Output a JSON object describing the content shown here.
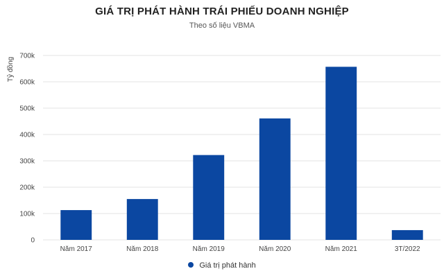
{
  "chart_data": {
    "type": "bar",
    "title": "GIÁ TRỊ PHÁT HÀNH TRÁI PHIẾU DOANH NGHIỆP",
    "subtitle": "Theo số liệu VBMA",
    "ylabel": "Tỷ đồng",
    "xlabel": "",
    "categories": [
      "Năm 2017",
      "Năm 2018",
      "Năm 2019",
      "Năm 2020",
      "Năm 2021",
      "3T/2022"
    ],
    "series": [
      {
        "name": "Giá trị phát hành",
        "values": [
          113000,
          155000,
          322000,
          461000,
          657000,
          37000
        ]
      }
    ],
    "ylim": [
      0,
      700000
    ],
    "yticks": [
      0,
      100000,
      200000,
      300000,
      400000,
      500000,
      600000,
      700000
    ],
    "ytick_labels": [
      "0",
      "100k",
      "200k",
      "300k",
      "400k",
      "500k",
      "600k",
      "700k"
    ],
    "grid": true,
    "legend_position": "bottom",
    "bar_color": "#0b47a1",
    "grid_color": "#e3e3e3"
  }
}
